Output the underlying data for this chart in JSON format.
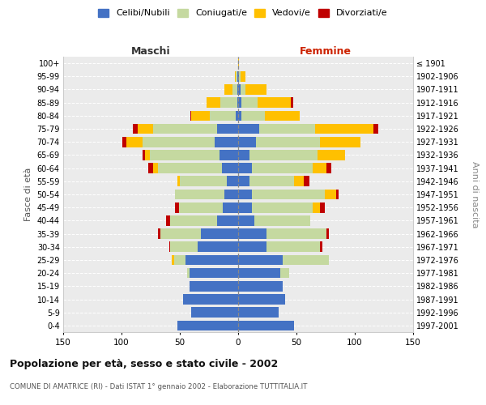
{
  "age_groups": [
    "100+",
    "95-99",
    "90-94",
    "85-89",
    "80-84",
    "75-79",
    "70-74",
    "65-69",
    "60-64",
    "55-59",
    "50-54",
    "45-49",
    "40-44",
    "35-39",
    "30-34",
    "25-29",
    "20-24",
    "15-19",
    "10-14",
    "5-9",
    "0-4"
  ],
  "birth_years": [
    "≤ 1901",
    "1902-1906",
    "1907-1911",
    "1912-1916",
    "1917-1921",
    "1922-1926",
    "1927-1931",
    "1932-1936",
    "1937-1941",
    "1942-1946",
    "1947-1951",
    "1952-1956",
    "1957-1961",
    "1962-1966",
    "1967-1971",
    "1972-1976",
    "1977-1981",
    "1982-1986",
    "1987-1991",
    "1992-1996",
    "1997-2001"
  ],
  "male_celibi": [
    0,
    1,
    1,
    1,
    2,
    18,
    20,
    16,
    14,
    10,
    12,
    13,
    18,
    32,
    35,
    45,
    42,
    42,
    47,
    40,
    52
  ],
  "male_coniugati": [
    0,
    1,
    4,
    14,
    22,
    55,
    62,
    60,
    55,
    40,
    42,
    38,
    40,
    35,
    23,
    10,
    2,
    0,
    0,
    0,
    0
  ],
  "male_vedovi": [
    0,
    1,
    7,
    12,
    16,
    13,
    14,
    4,
    4,
    2,
    0,
    0,
    0,
    0,
    0,
    2,
    0,
    0,
    0,
    0,
    0
  ],
  "male_divorziati": [
    0,
    0,
    0,
    0,
    1,
    4,
    3,
    2,
    4,
    0,
    0,
    3,
    4,
    2,
    1,
    0,
    0,
    0,
    0,
    0,
    0
  ],
  "female_celibi": [
    0,
    1,
    2,
    3,
    3,
    18,
    15,
    10,
    12,
    10,
    12,
    12,
    14,
    24,
    24,
    38,
    36,
    38,
    40,
    35,
    48
  ],
  "female_coniugati": [
    0,
    1,
    4,
    14,
    20,
    48,
    55,
    58,
    52,
    38,
    62,
    52,
    48,
    52,
    46,
    40,
    8,
    0,
    0,
    0,
    0
  ],
  "female_vedovi": [
    1,
    4,
    18,
    28,
    30,
    50,
    35,
    24,
    12,
    8,
    10,
    6,
    0,
    0,
    0,
    0,
    0,
    0,
    0,
    0,
    0
  ],
  "female_divorziati": [
    0,
    0,
    0,
    2,
    0,
    4,
    0,
    0,
    4,
    5,
    2,
    4,
    0,
    2,
    2,
    0,
    0,
    0,
    0,
    0,
    0
  ],
  "colors": {
    "celibi": "#4472c4",
    "coniugati": "#c5d9a0",
    "vedovi": "#ffc000",
    "divorziati": "#c00000"
  },
  "title": "Popolazione per età, sesso e stato civile - 2002",
  "subtitle": "COMUNE DI AMATRICE (RI) - Dati ISTAT 1° gennaio 2002 - Elaborazione TUTTITALIA.IT",
  "xlabel_left": "Maschi",
  "xlabel_right": "Femmine",
  "ylabel_left": "Fasce di età",
  "ylabel_right": "Anni di nascita",
  "xlim": 150,
  "bg_color": "#ebebeb",
  "legend_labels": [
    "Celibi/Nubili",
    "Coniugati/e",
    "Vedovi/e",
    "Divorziati/e"
  ]
}
